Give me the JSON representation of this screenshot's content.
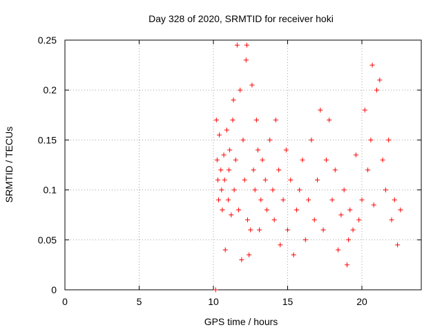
{
  "chart_data": {
    "type": "scatter",
    "title": "Day 328 of 2020, SRMTID for receiver hoki",
    "xlabel": "GPS time / hours",
    "ylabel": "SRMTID / TECUs",
    "xlim": [
      0,
      24
    ],
    "ylim": [
      0,
      0.25
    ],
    "x_ticks": [
      0,
      5,
      10,
      15,
      20
    ],
    "y_ticks": [
      0,
      0.05,
      0.1,
      0.15,
      0.2,
      0.25
    ],
    "x_tick_labels": [
      "0",
      "5",
      "10",
      "15",
      "20"
    ],
    "y_tick_labels": [
      "0",
      "0.05",
      "0.1",
      "0.15",
      "0.2",
      "0.25"
    ],
    "grid": true,
    "legend": "none",
    "marker": "plus",
    "color": "#ff0000",
    "x_data_range": [
      10.1,
      22.7
    ],
    "series": [
      {
        "points": [
          [
            10.15,
            0.0
          ],
          [
            10.2,
            0.17
          ],
          [
            10.25,
            0.13
          ],
          [
            10.3,
            0.11
          ],
          [
            10.35,
            0.09
          ],
          [
            10.4,
            0.155
          ],
          [
            10.5,
            0.12
          ],
          [
            10.55,
            0.1
          ],
          [
            10.6,
            0.08
          ],
          [
            10.7,
            0.135
          ],
          [
            10.75,
            0.11
          ],
          [
            10.8,
            0.04
          ],
          [
            10.9,
            0.16
          ],
          [
            11.0,
            0.09
          ],
          [
            11.05,
            0.12
          ],
          [
            11.1,
            0.14
          ],
          [
            11.2,
            0.075
          ],
          [
            11.3,
            0.17
          ],
          [
            11.35,
            0.19
          ],
          [
            11.4,
            0.1
          ],
          [
            11.5,
            0.13
          ],
          [
            11.6,
            0.245
          ],
          [
            11.7,
            0.08
          ],
          [
            11.8,
            0.2
          ],
          [
            11.9,
            0.03
          ],
          [
            12.0,
            0.15
          ],
          [
            12.1,
            0.11
          ],
          [
            12.2,
            0.23
          ],
          [
            12.25,
            0.245
          ],
          [
            12.3,
            0.07
          ],
          [
            12.4,
            0.035
          ],
          [
            12.5,
            0.06
          ],
          [
            12.6,
            0.205
          ],
          [
            12.7,
            0.12
          ],
          [
            12.8,
            0.1
          ],
          [
            12.9,
            0.17
          ],
          [
            13.0,
            0.14
          ],
          [
            13.1,
            0.06
          ],
          [
            13.2,
            0.09
          ],
          [
            13.3,
            0.13
          ],
          [
            13.5,
            0.11
          ],
          [
            13.6,
            0.08
          ],
          [
            13.8,
            0.15
          ],
          [
            14.0,
            0.1
          ],
          [
            14.1,
            0.07
          ],
          [
            14.2,
            0.17
          ],
          [
            14.4,
            0.12
          ],
          [
            14.5,
            0.045
          ],
          [
            14.7,
            0.09
          ],
          [
            14.9,
            0.14
          ],
          [
            15.0,
            0.06
          ],
          [
            15.2,
            0.11
          ],
          [
            15.4,
            0.035
          ],
          [
            15.6,
            0.08
          ],
          [
            15.8,
            0.1
          ],
          [
            16.0,
            0.13
          ],
          [
            16.2,
            0.05
          ],
          [
            16.4,
            0.09
          ],
          [
            16.6,
            0.15
          ],
          [
            16.8,
            0.07
          ],
          [
            17.0,
            0.11
          ],
          [
            17.2,
            0.18
          ],
          [
            17.4,
            0.06
          ],
          [
            17.6,
            0.13
          ],
          [
            17.8,
            0.17
          ],
          [
            18.0,
            0.09
          ],
          [
            18.2,
            0.12
          ],
          [
            18.4,
            0.04
          ],
          [
            18.6,
            0.075
          ],
          [
            18.8,
            0.1
          ],
          [
            19.0,
            0.025
          ],
          [
            19.1,
            0.05
          ],
          [
            19.2,
            0.08
          ],
          [
            19.4,
            0.06
          ],
          [
            19.6,
            0.135
          ],
          [
            19.8,
            0.07
          ],
          [
            20.0,
            0.09
          ],
          [
            20.2,
            0.18
          ],
          [
            20.4,
            0.12
          ],
          [
            20.6,
            0.15
          ],
          [
            20.7,
            0.225
          ],
          [
            20.8,
            0.085
          ],
          [
            21.0,
            0.2
          ],
          [
            21.2,
            0.21
          ],
          [
            21.4,
            0.13
          ],
          [
            21.6,
            0.1
          ],
          [
            21.8,
            0.15
          ],
          [
            22.0,
            0.07
          ],
          [
            22.2,
            0.09
          ],
          [
            22.4,
            0.045
          ],
          [
            22.6,
            0.08
          ]
        ]
      }
    ]
  }
}
